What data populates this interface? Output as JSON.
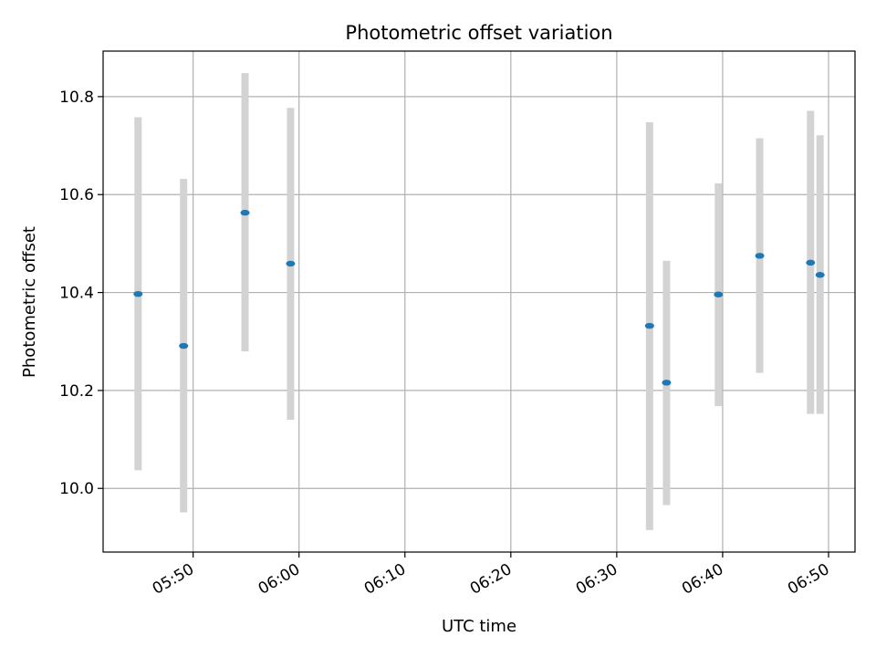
{
  "chart_data": {
    "type": "scatter",
    "title": "Photometric offset variation",
    "xlabel": "UTC time",
    "ylabel": "Photometric offset",
    "x_axis_kind": "time",
    "xlim": [
      "05:41:30",
      "06:52:30"
    ],
    "ylim": [
      9.87,
      10.893
    ],
    "x_ticks": [
      "05:50",
      "06:00",
      "06:10",
      "06:20",
      "06:30",
      "06:40",
      "06:50"
    ],
    "y_ticks": [
      10.0,
      10.2,
      10.4,
      10.6,
      10.8
    ],
    "y_tick_labels": [
      "10.0",
      "10.2",
      "10.4",
      "10.6",
      "10.8"
    ],
    "grid": true,
    "colors": {
      "marker": "#1f77b4",
      "errorbar": "#d3d3d3",
      "grid": "#b0b0b0"
    },
    "series": [
      {
        "points": [
          {
            "x": "05:44:48",
            "y": 10.397,
            "ylow": 10.037,
            "yhigh": 10.758
          },
          {
            "x": "05:49:06",
            "y": 10.291,
            "ylow": 9.951,
            "yhigh": 10.632
          },
          {
            "x": "05:54:54",
            "y": 10.563,
            "ylow": 10.28,
            "yhigh": 10.848
          },
          {
            "x": "05:59:12",
            "y": 10.459,
            "ylow": 10.14,
            "yhigh": 10.777
          },
          {
            "x": "06:33:06",
            "y": 10.332,
            "ylow": 9.915,
            "yhigh": 10.748
          },
          {
            "x": "06:34:42",
            "y": 10.216,
            "ylow": 9.966,
            "yhigh": 10.465
          },
          {
            "x": "06:39:36",
            "y": 10.396,
            "ylow": 10.168,
            "yhigh": 10.623
          },
          {
            "x": "06:43:30",
            "y": 10.475,
            "ylow": 10.236,
            "yhigh": 10.715
          },
          {
            "x": "06:48:18",
            "y": 10.461,
            "ylow": 10.152,
            "yhigh": 10.771
          },
          {
            "x": "06:49:12",
            "y": 10.436,
            "ylow": 10.152,
            "yhigh": 10.721
          }
        ]
      }
    ]
  }
}
